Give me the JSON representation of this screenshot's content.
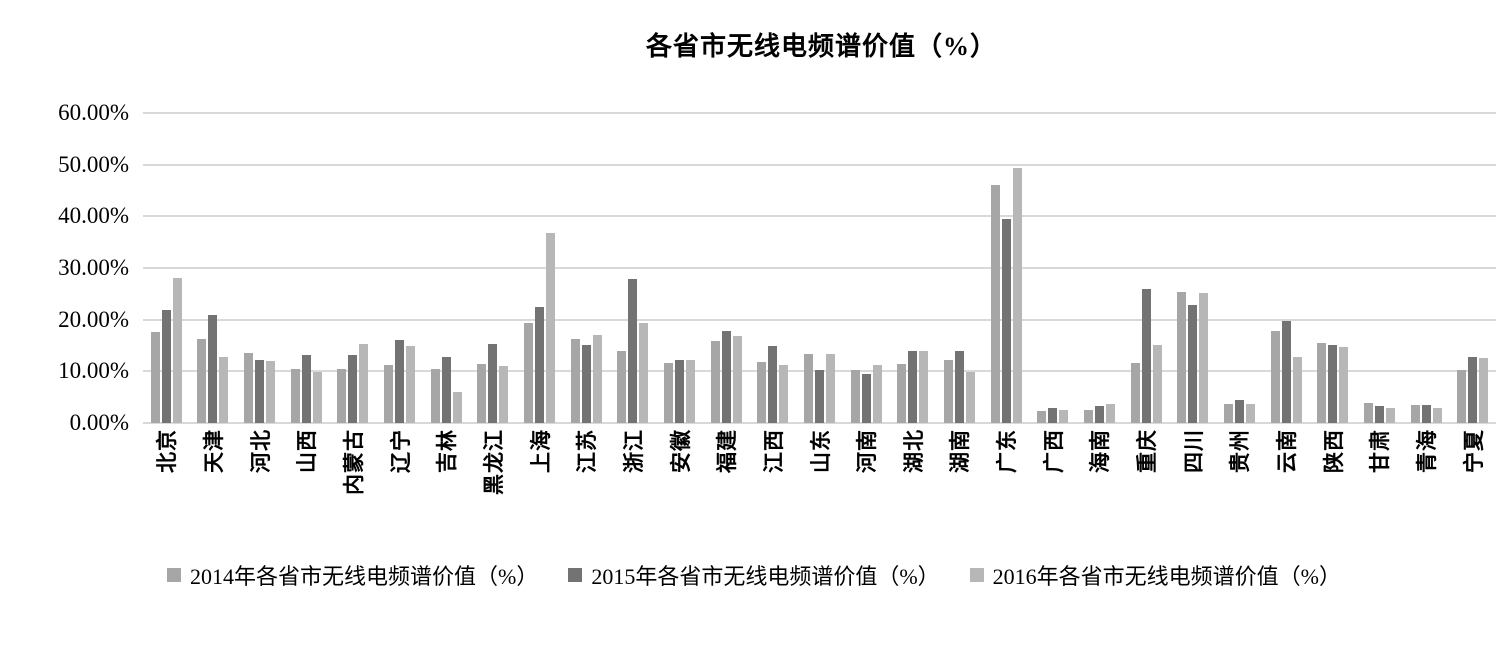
{
  "chart_data": {
    "type": "bar",
    "title": "各省市无线电频谱价值（%）",
    "xlabel": "",
    "ylabel": "",
    "ylim": [
      0,
      60
    ],
    "grid": true,
    "legend_position": "bottom",
    "yticks_top_down": [
      "60.00%",
      "50.00%",
      "40.00%",
      "30.00%",
      "20.00%",
      "10.00%",
      "0.00%"
    ],
    "categories": [
      "北京",
      "天津",
      "河北",
      "山西",
      "内蒙古",
      "辽宁",
      "吉林",
      "黑龙江",
      "上海",
      "江苏",
      "浙江",
      "安徽",
      "福建",
      "江西",
      "山东",
      "河南",
      "湖北",
      "湖南",
      "广东",
      "广西",
      "海南",
      "重庆",
      "四川",
      "贵州",
      "云南",
      "陕西",
      "甘肃",
      "青海",
      "宁夏"
    ],
    "series": [
      {
        "name": "2014年各省市无线电频谱价值（%）",
        "year": "2014",
        "color": "#a6a6a6",
        "values": [
          17.6,
          16.2,
          13.6,
          10.5,
          10.4,
          11.2,
          10.5,
          11.4,
          19.3,
          16.3,
          13.9,
          11.6,
          15.8,
          11.9,
          13.3,
          10.3,
          11.5,
          12.1,
          46.0,
          2.4,
          2.6,
          11.7,
          25.3,
          3.6,
          17.9,
          15.4,
          3.8,
          3.5,
          10.3
        ]
      },
      {
        "name": "2015年各省市无线电频谱价值（%）",
        "year": "2015",
        "color": "#737373",
        "values": [
          21.9,
          21.0,
          12.2,
          13.2,
          13.1,
          16.1,
          12.7,
          15.3,
          22.5,
          15.1,
          27.8,
          12.2,
          17.8,
          15.0,
          10.2,
          9.4,
          13.9,
          13.9,
          39.5,
          2.9,
          3.2,
          26.0,
          22.9,
          4.5,
          19.7,
          15.1,
          3.3,
          3.5,
          12.7
        ]
      },
      {
        "name": "2016年各省市无线电频谱价值（%）",
        "year": "2016",
        "color": "#b7b7b7",
        "values": [
          28.0,
          12.8,
          12.0,
          9.9,
          15.3,
          14.9,
          6.0,
          11.0,
          36.8,
          17.0,
          19.4,
          12.2,
          16.9,
          11.3,
          13.4,
          11.2,
          13.9,
          9.8,
          49.4,
          2.6,
          3.7,
          15.1,
          25.1,
          3.6,
          12.8,
          14.7,
          2.9,
          2.9,
          12.5
        ]
      }
    ],
    "colors": {
      "gridline": "#d9d9d9",
      "text": "#000000",
      "background": "#ffffff"
    }
  }
}
